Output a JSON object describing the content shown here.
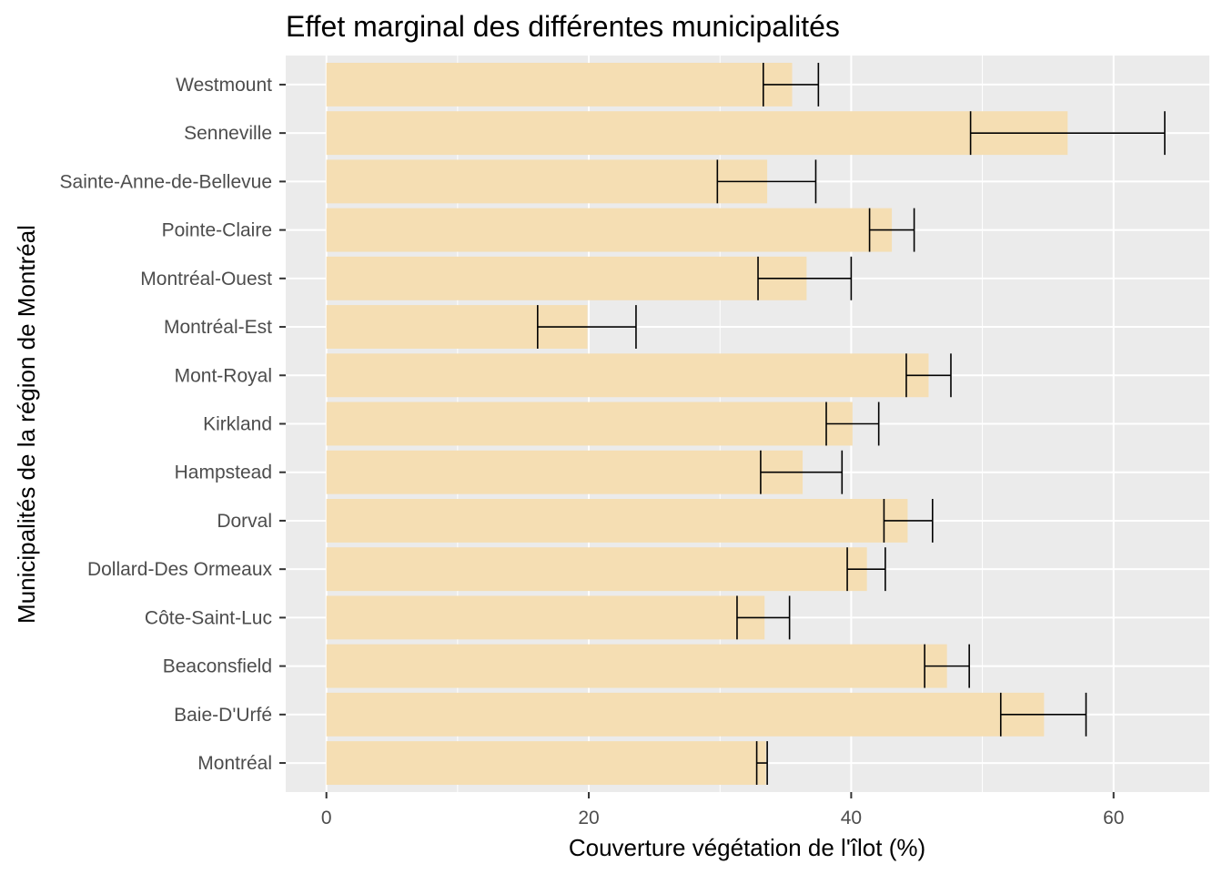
{
  "chart_data": {
    "type": "bar",
    "orientation": "horizontal",
    "title": "Effet marginal des différentes municipalités",
    "xlabel": "Couverture végétation de l'îlot (%)",
    "ylabel": "Municipalités de la région de Montréal",
    "xlim": [
      -3.1,
      67.3
    ],
    "xticks": [
      0,
      20,
      40,
      60
    ],
    "grid": true,
    "legend": "none",
    "bar_color": "#F5DEB3",
    "panel_color": "#EBEBEB",
    "categories": [
      "Montréal",
      "Baie-D'Urfé",
      "Beaconsfield",
      "Côte-Saint-Luc",
      "Dollard-Des Ormeaux",
      "Dorval",
      "Hampstead",
      "Kirkland",
      "Mont-Royal",
      "Montréal-Est",
      "Montréal-Ouest",
      "Pointe-Claire",
      "Sainte-Anne-de-Bellevue",
      "Senneville",
      "Westmount"
    ],
    "values": [
      33.5,
      54.7,
      47.3,
      33.4,
      41.2,
      44.3,
      36.3,
      40.1,
      45.9,
      19.9,
      36.6,
      43.1,
      33.6,
      56.5,
      35.5
    ],
    "error_low": [
      32.8,
      51.4,
      45.6,
      31.3,
      39.7,
      42.5,
      33.1,
      38.1,
      44.2,
      16.1,
      32.9,
      41.4,
      29.8,
      49.1,
      33.3
    ],
    "error_high": [
      33.6,
      57.9,
      49.0,
      35.3,
      42.6,
      46.2,
      39.3,
      42.1,
      47.6,
      23.6,
      40.0,
      44.8,
      37.3,
      63.9,
      37.5
    ]
  }
}
